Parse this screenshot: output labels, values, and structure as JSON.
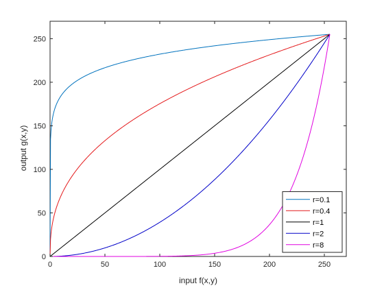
{
  "chart_data": {
    "type": "line",
    "title": "",
    "xlabel": "input f(x,y)",
    "ylabel": "output g(x,y)",
    "xlim": [
      0,
      270
    ],
    "ylim": [
      0,
      270
    ],
    "xticks": [
      "0",
      "50",
      "100",
      "150",
      "200",
      "250"
    ],
    "yticks": [
      "0",
      "50",
      "100",
      "150",
      "200",
      "250"
    ],
    "grid": false,
    "legend_position": "bottom-right",
    "x_range": [
      0,
      255
    ],
    "series": [
      {
        "name": "r=0.1",
        "gamma": 0.1,
        "color": "#0072BD"
      },
      {
        "name": "r=0.4",
        "gamma": 0.4,
        "color": "#E41A1C"
      },
      {
        "name": "r=1",
        "gamma": 1,
        "color": "#000000"
      },
      {
        "name": "r=2",
        "gamma": 2,
        "color": "#0000C8"
      },
      {
        "name": "r=8",
        "gamma": 8,
        "color": "#E000E0"
      }
    ]
  }
}
